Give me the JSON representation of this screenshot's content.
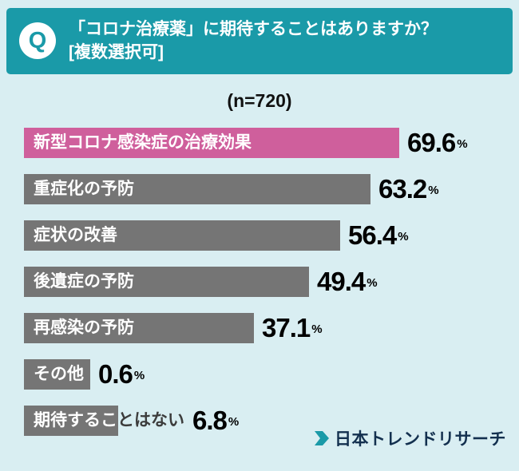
{
  "page": {
    "background_color": "#d9eef2"
  },
  "header": {
    "badge": "Q",
    "title": "「コロナ治療薬」に期待することはありますか？",
    "subtitle": "[複数選択可]",
    "background_color": "#1a9aa8",
    "badge_color": "#ffffff",
    "badge_text_color": "#1a9aa8"
  },
  "sample_size_label": "(n=720)",
  "chart_data": {
    "type": "bar",
    "orientation": "horizontal",
    "title": "「コロナ治療薬」に期待することはありますか？ [複数選択可]",
    "sample_size": "(n=720)",
    "categories": [
      "新型コロナ感染症の治療効果",
      "重症化の予防",
      "症状の改善",
      "後遺症の予防",
      "再感染の予防",
      "その他",
      "期待することはない"
    ],
    "values": [
      69.6,
      63.2,
      56.4,
      49.4,
      37.1,
      0.6,
      6.8
    ],
    "unit": "%",
    "bar_colors": [
      "#cf5f9c",
      "#757575",
      "#757575",
      "#757575",
      "#757575",
      "#757575",
      "#757575"
    ],
    "highlight_index": 0,
    "highlight_color": "#cf5f9c",
    "default_bar_color": "#757575",
    "xlim": [
      0,
      75
    ],
    "value_labels_shown": true,
    "grid": false,
    "legend": false
  },
  "logo": {
    "text": "日本トレンドリサーチ",
    "icon": "chevron-arrow-icon",
    "icon_color": "#1a9aa8",
    "text_color": "#13304f"
  }
}
